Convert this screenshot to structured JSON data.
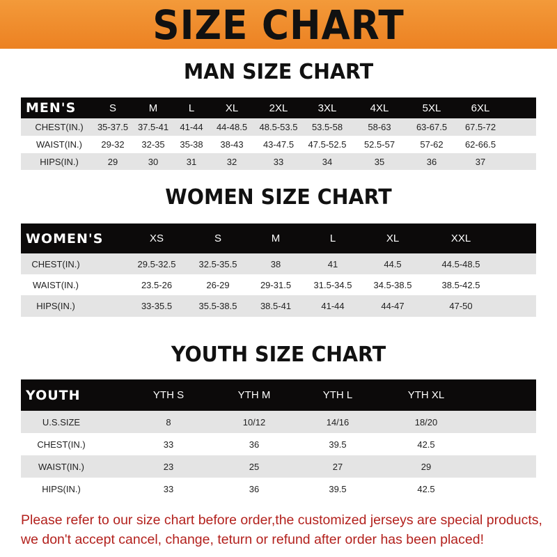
{
  "title": "SIZE CHART",
  "men": {
    "title": "MAN SIZE CHART",
    "header": [
      "MEN'S",
      "S",
      "M",
      "L",
      "XL",
      "2XL",
      "3XL",
      "4XL",
      "5XL",
      "6XL"
    ],
    "rows": [
      [
        "CHEST(IN.)",
        "35-37.5",
        "37.5-41",
        "41-44",
        "44-48.5",
        "48.5-53.5",
        "53.5-58",
        "58-63",
        "63-67.5",
        "67.5-72"
      ],
      [
        "WAIST(IN.)",
        "29-32",
        "32-35",
        "35-38",
        "38-43",
        "43-47.5",
        "47.5-52.5",
        "52.5-57",
        "57-62",
        "62-66.5"
      ],
      [
        "HIPS(IN.)",
        "29",
        "30",
        "31",
        "32",
        "33",
        "34",
        "35",
        "36",
        "37"
      ]
    ]
  },
  "women": {
    "title": "WOMEN SIZE CHART",
    "header": [
      "WOMEN'S",
      "XS",
      "S",
      "M",
      "L",
      "XL",
      "XXL"
    ],
    "rows": [
      [
        "CHEST(IN.)",
        "29.5-32.5",
        "32.5-35.5",
        "38",
        "41",
        "44.5",
        "44.5-48.5"
      ],
      [
        "WAIST(IN.)",
        "23.5-26",
        "26-29",
        "29-31.5",
        "31.5-34.5",
        "34.5-38.5",
        "38.5-42.5"
      ],
      [
        "HIPS(IN.)",
        "33-35.5",
        "35.5-38.5",
        "38.5-41",
        "41-44",
        "44-47",
        "47-50"
      ]
    ]
  },
  "youth": {
    "title": "YOUTH SIZE CHART",
    "header": [
      "YOUTH",
      "YTH S",
      "YTH M",
      "YTH L",
      "YTH XL"
    ],
    "rows": [
      [
        "U.S.SIZE",
        "8",
        "10/12",
        "14/16",
        "18/20"
      ],
      [
        "CHEST(IN.)",
        "33",
        "36",
        "39.5",
        "42.5"
      ],
      [
        "WAIST(IN.)",
        "23",
        "25",
        "27",
        "29"
      ],
      [
        "HIPS(IN.)",
        "33",
        "36",
        "39.5",
        "42.5"
      ]
    ]
  },
  "notice": {
    "line1": "Please refer to our size chart before order,the customized jerseys are special products,",
    "line2": "we don't accept cancel, change, teturn or refund after order has been placed!"
  },
  "colors": {
    "banner": "#ec8122",
    "header_row": "#0c0a0a",
    "stripe": "#e4e4e4",
    "notice": "#b3211d"
  }
}
